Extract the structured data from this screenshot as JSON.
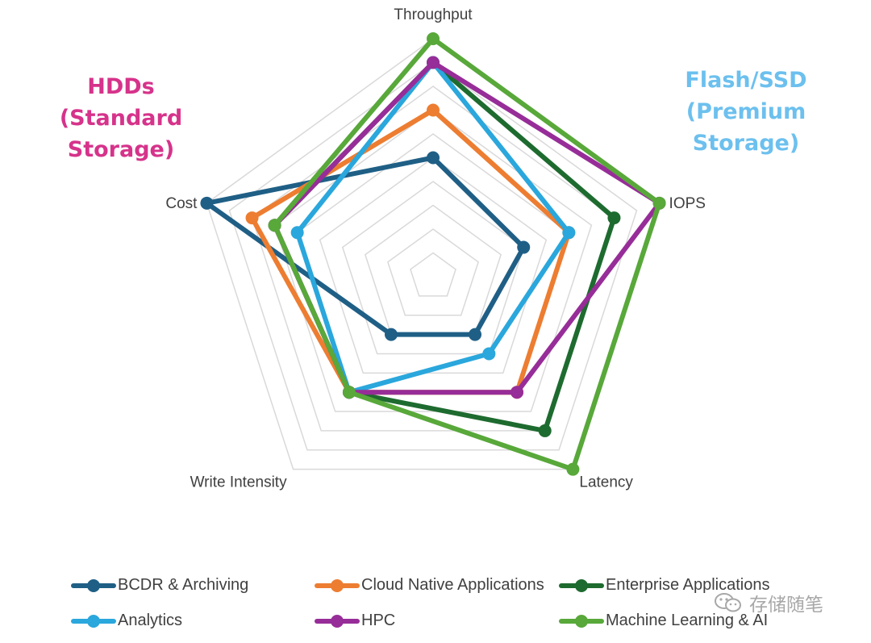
{
  "chart_data": {
    "type": "radar",
    "title": "",
    "axes": [
      "Throughput",
      "IOPS",
      "Latency",
      "Write Intensity",
      "Cost"
    ],
    "range": [
      0,
      10
    ],
    "rings": 10,
    "series": [
      {
        "name": "BCDR & Archiving",
        "color": "#1f5f86",
        "values": [
          5,
          4,
          3,
          3,
          10
        ]
      },
      {
        "name": "Cloud Native Applications",
        "color": "#ed7d31",
        "values": [
          7,
          6,
          6,
          6,
          8
        ]
      },
      {
        "name": "Enterprise Applications",
        "color": "#1e6b2f",
        "values": [
          9,
          8,
          8,
          6,
          7
        ]
      },
      {
        "name": "Analytics",
        "color": "#2aa7dc",
        "values": [
          9,
          6,
          4,
          6,
          6
        ]
      },
      {
        "name": "HPC",
        "color": "#972d98",
        "values": [
          9,
          10,
          6,
          6,
          7
        ]
      },
      {
        "name": "Machine Learning & AI",
        "color": "#58a83a",
        "values": [
          10,
          10,
          10,
          6,
          7
        ]
      }
    ]
  },
  "annotations": {
    "hdd": [
      "HDDs (Standard",
      "Storage)"
    ],
    "flash": [
      "Flash/SSD",
      "(Premium",
      "Storage)"
    ]
  },
  "legend": {
    "items": [
      {
        "label": "BCDR & Archiving",
        "color": "#1f5f86"
      },
      {
        "label": "Cloud Native Applications",
        "color": "#ed7d31"
      },
      {
        "label": "Enterprise Applications",
        "color": "#1e6b2f"
      },
      {
        "label": "Analytics",
        "color": "#2aa7dc"
      },
      {
        "label": "HPC",
        "color": "#972d98"
      },
      {
        "label": "Machine Learning & AI",
        "color": "#58a83a"
      }
    ]
  },
  "watermark": {
    "text": "存储随笔",
    "icon": "wechat-icon"
  }
}
